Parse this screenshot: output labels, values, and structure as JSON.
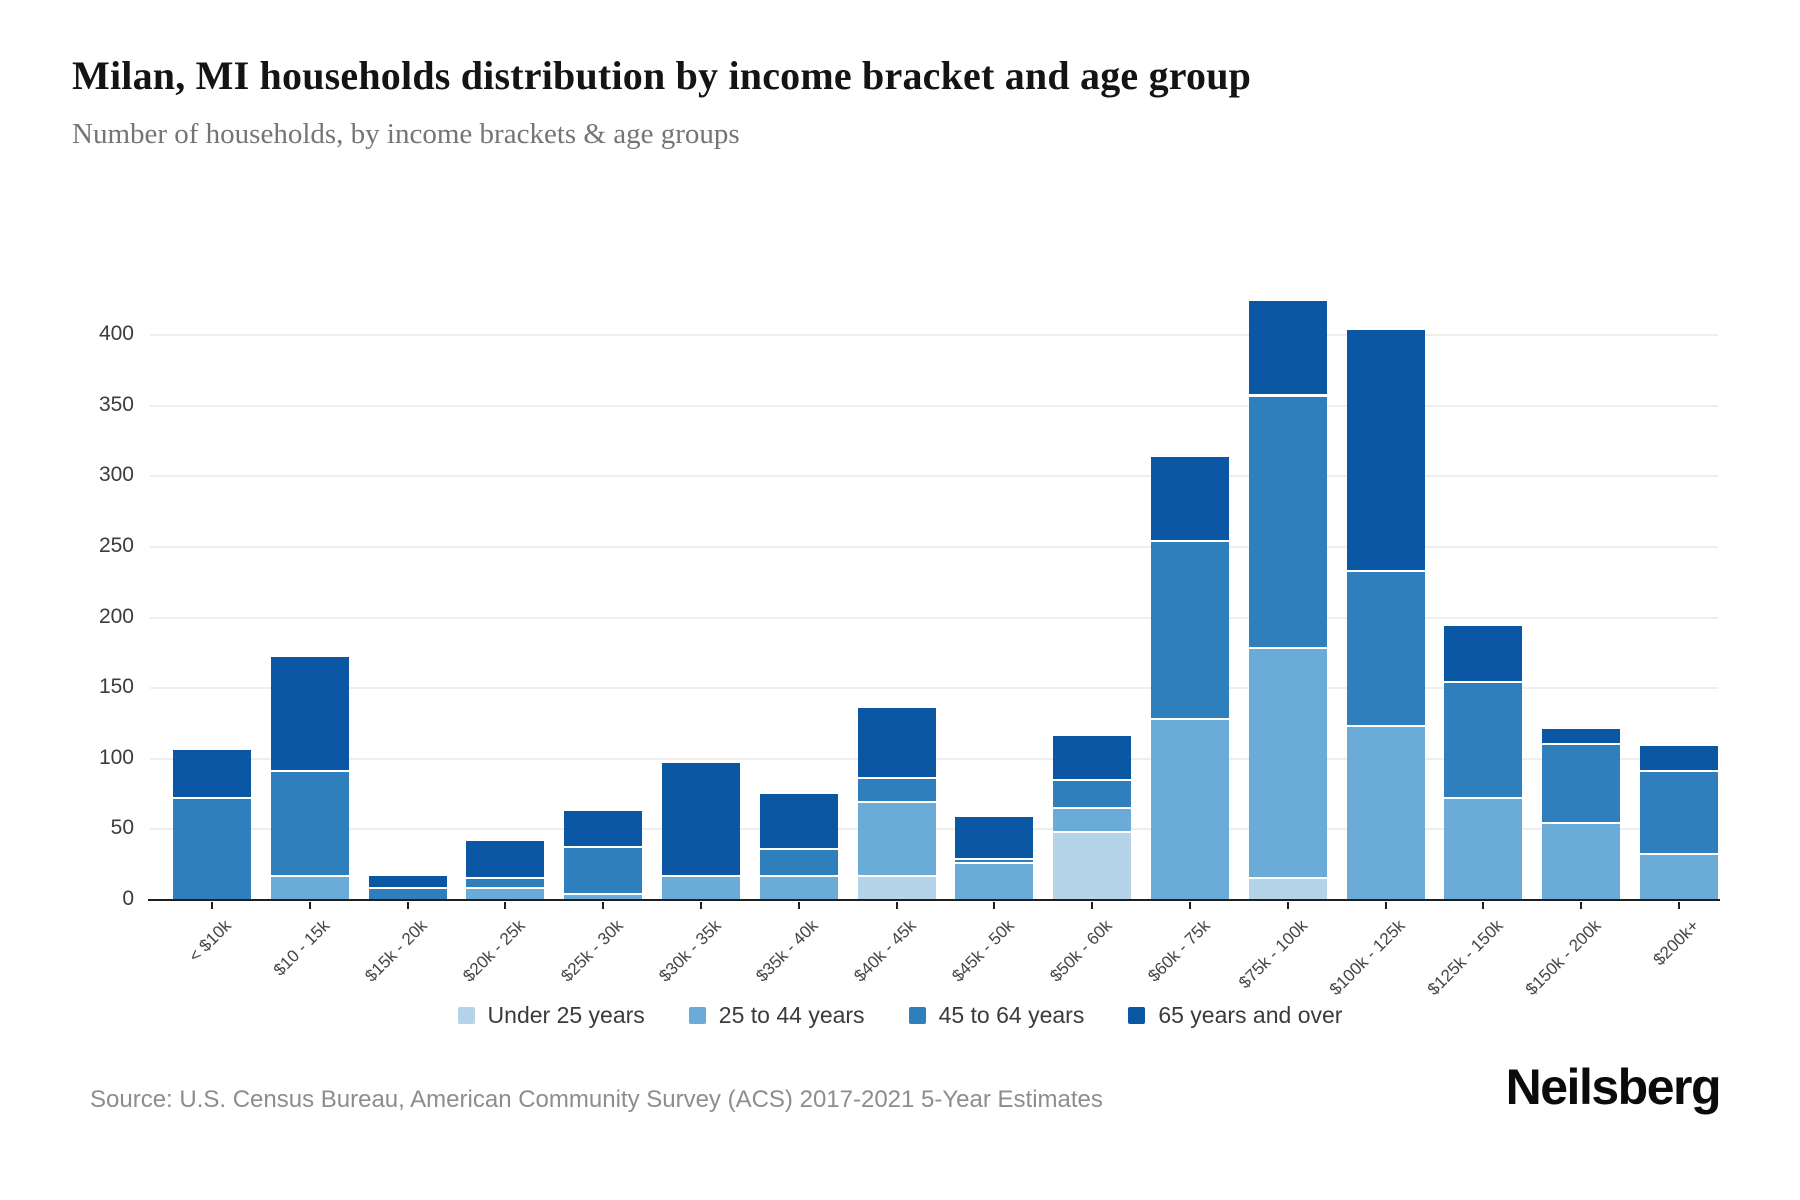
{
  "header": {
    "title": "Milan, MI households distribution by income bracket and age group",
    "subtitle": "Number of households, by income brackets & age groups"
  },
  "chart_data": {
    "type": "bar",
    "stacked": true,
    "title": "Milan, MI households distribution by income bracket and age group",
    "subtitle": "Number of households, by income brackets & age groups",
    "xlabel": "",
    "ylabel": "Number of households",
    "ylim": [
      0,
      450
    ],
    "y_ticks": [
      0,
      50,
      100,
      150,
      200,
      250,
      300,
      350,
      400
    ],
    "grid": true,
    "legend_position": "bottom",
    "categories": [
      "< $10k",
      "$10 - 15k",
      "$15k - 20k",
      "$20k - 25k",
      "$25k - 30k",
      "$30k - 35k",
      "$35k - 40k",
      "$40k - 45k",
      "$45k - 50k",
      "$50k - 60k",
      "$60k - 75k",
      "$75k - 100k",
      "$100k - 125k",
      "$125k - 150k",
      "$150k - 200k",
      "$200k+"
    ],
    "series": [
      {
        "name": "Under 25 years",
        "color": "#b5d3e9",
        "values": [
          0,
          0,
          0,
          0,
          0,
          0,
          0,
          18,
          0,
          49,
          0,
          16,
          0,
          0,
          0,
          0
        ]
      },
      {
        "name": "25 to 44 years",
        "color": "#6babd7",
        "values": [
          0,
          18,
          0,
          9,
          5,
          18,
          18,
          52,
          27,
          17,
          129,
          163,
          124,
          73,
          55,
          33
        ]
      },
      {
        "name": "45 to 64 years",
        "color": "#2f7fbd",
        "values": [
          73,
          74,
          9,
          7,
          33,
          0,
          19,
          17,
          3,
          20,
          126,
          179,
          110,
          82,
          56,
          59
        ]
      },
      {
        "name": "65 years and over",
        "color": "#0c57a3",
        "values": [
          33,
          80,
          8,
          26,
          25,
          79,
          38,
          49,
          29,
          30,
          59,
          66,
          170,
          39,
          10,
          17
        ]
      }
    ]
  },
  "footer": {
    "source": "Source: U.S. Census Bureau, American Community Survey (ACS) 2017-2021 5-Year Estimates",
    "logo": "Neilsberg"
  }
}
